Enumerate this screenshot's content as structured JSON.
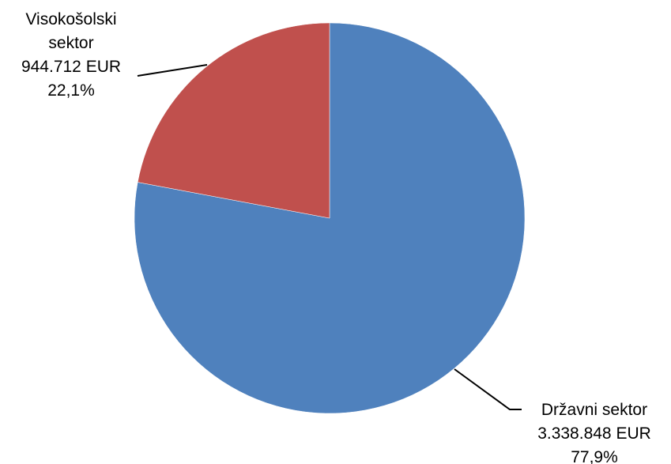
{
  "chart_data": {
    "type": "pie",
    "start_angle_deg": 0,
    "direction": "clockwise",
    "slices": [
      {
        "name": "Državni sektor",
        "value": 3338848,
        "value_label": "3.338.848 EUR",
        "percent_label": "77,9%",
        "color": "#4F81BD"
      },
      {
        "name": "Visokošolski sektor",
        "value": 944712,
        "value_label": "944.712 EUR",
        "percent_label": "22,1%",
        "color": "#C0504D"
      }
    ]
  }
}
